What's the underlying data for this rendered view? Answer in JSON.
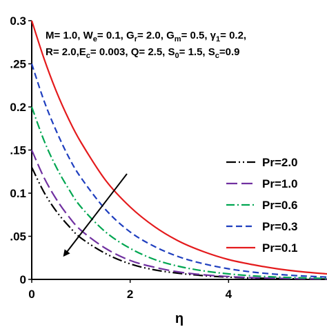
{
  "chart_data": {
    "type": "line",
    "xlabel": "η",
    "ylabel": "",
    "xlim": [
      0,
      6
    ],
    "ylim": [
      0,
      0.3
    ],
    "x_ticks": [
      0,
      2,
      4
    ],
    "y_ticks": [
      0,
      0.05,
      0.1,
      0.15,
      0.2,
      0.25,
      0.3
    ],
    "y_tick_labels": [
      "0",
      ".05",
      "0.1",
      ".15",
      "0.2",
      ".25",
      "0.3"
    ],
    "grid": false,
    "legend_position": "right",
    "parameters": {
      "line1": [
        "M= 1.0, W",
        "e",
        "= 0.1, G",
        "r",
        "= 2.0, G",
        "m",
        "= 0.5, γ",
        "1",
        "= 0.2,"
      ],
      "line2": [
        "R= 2.0,E",
        "c",
        "= 0.003, Q= 2.5, S",
        "0",
        "= 1.5, S",
        "c",
        "=0.9"
      ]
    },
    "annotation": "arrow indicating increasing Pr",
    "series": [
      {
        "name": "Pr=2.0",
        "color": "#000000",
        "dash": "dashdotdot",
        "x": [
          0,
          0.25,
          0.5,
          0.75,
          1,
          1.5,
          2,
          2.5,
          3,
          3.5,
          4,
          4.5,
          5,
          5.5,
          6
        ],
        "y": [
          0.13,
          0.101,
          0.079,
          0.062,
          0.048,
          0.03,
          0.018,
          0.011,
          0.007,
          0.0043,
          0.0026,
          0.0016,
          0.001,
          0.0006,
          0.0004
        ]
      },
      {
        "name": "Pr=1.0",
        "color": "#7030a0",
        "dash": "longdash",
        "x": [
          0,
          0.25,
          0.5,
          0.75,
          1,
          1.5,
          2,
          2.5,
          3,
          3.5,
          4,
          4.5,
          5,
          5.5,
          6
        ],
        "y": [
          0.15,
          0.118,
          0.093,
          0.073,
          0.057,
          0.036,
          0.022,
          0.014,
          0.0085,
          0.0053,
          0.0033,
          0.002,
          0.0013,
          0.0008,
          0.0005
        ]
      },
      {
        "name": "Pr=0.6",
        "color": "#00a651",
        "dash": "dashdot",
        "x": [
          0,
          0.25,
          0.5,
          0.75,
          1,
          1.5,
          2,
          2.5,
          3,
          3.5,
          4,
          4.5,
          5,
          5.5,
          6
        ],
        "y": [
          0.2,
          0.161,
          0.13,
          0.105,
          0.084,
          0.055,
          0.036,
          0.023,
          0.015,
          0.0098,
          0.0064,
          0.0041,
          0.0027,
          0.0018,
          0.0011
        ]
      },
      {
        "name": "Pr=0.3",
        "color": "#1f3fbf",
        "dash": "shortdash",
        "x": [
          0,
          0.25,
          0.5,
          0.75,
          1,
          1.5,
          2,
          2.5,
          3,
          3.5,
          4,
          4.5,
          5,
          5.5,
          6
        ],
        "y": [
          0.25,
          0.207,
          0.172,
          0.142,
          0.118,
          0.081,
          0.055,
          0.038,
          0.026,
          0.018,
          0.0123,
          0.0084,
          0.0058,
          0.004,
          0.0027
        ]
      },
      {
        "name": "Pr=0.1",
        "color": "#e41a1c",
        "dash": "solid",
        "x": [
          0,
          0.25,
          0.5,
          0.75,
          1,
          1.5,
          2,
          2.5,
          3,
          3.5,
          4,
          4.5,
          5,
          5.5,
          6
        ],
        "y": [
          0.3,
          0.256,
          0.218,
          0.186,
          0.159,
          0.115,
          0.084,
          0.061,
          0.044,
          0.032,
          0.023,
          0.017,
          0.0122,
          0.0088,
          0.0064
        ]
      }
    ]
  }
}
